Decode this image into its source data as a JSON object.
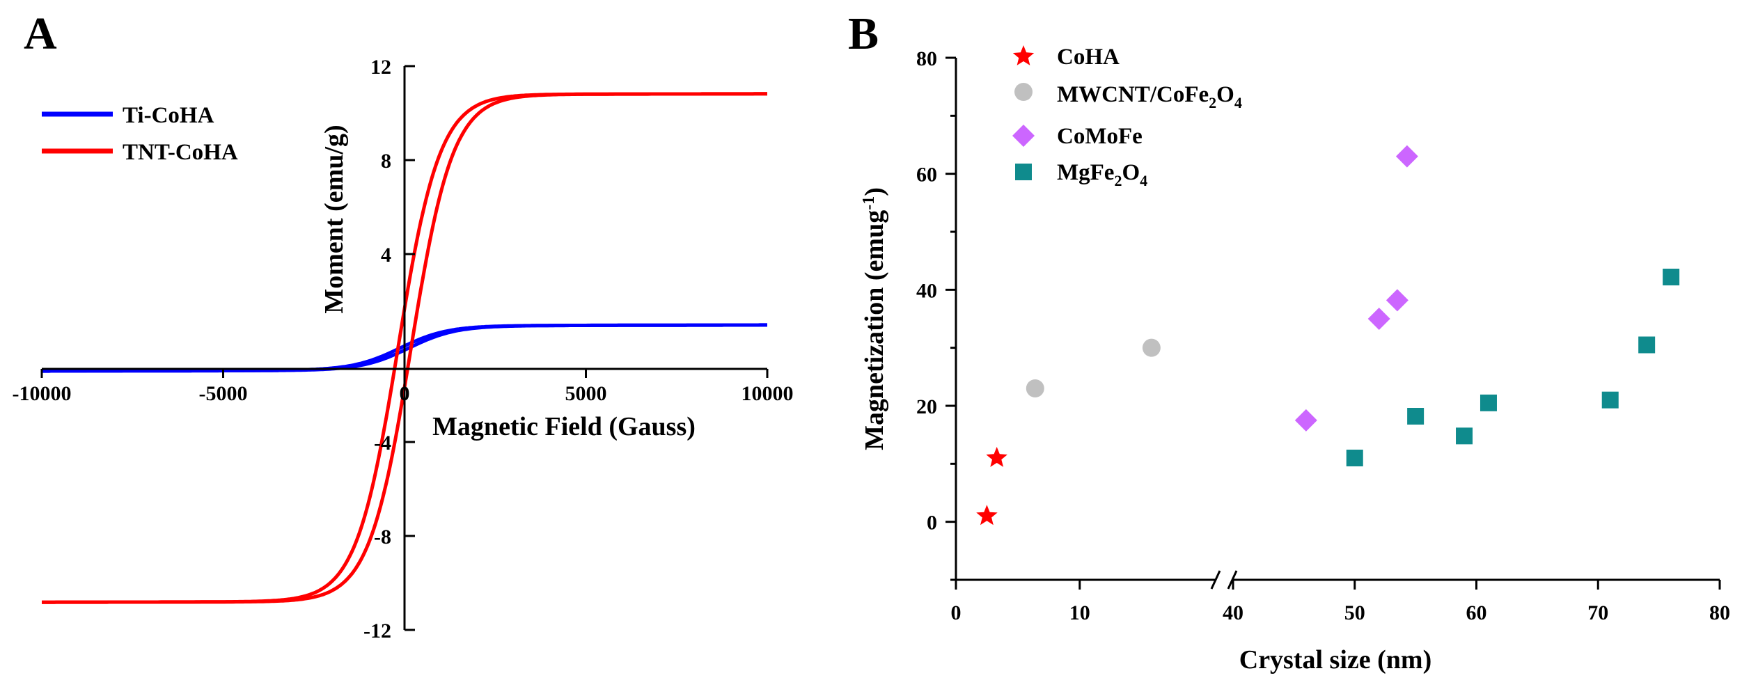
{
  "chart_data": [
    {
      "panel": "A",
      "type": "line",
      "title": "",
      "xlabel": "Magnetic Field (Gauss)",
      "ylabel": "Moment (emu/g)",
      "xlim": [
        -10000,
        10000
      ],
      "ylim": [
        -12,
        12
      ],
      "xticks": [
        -10000,
        -5000,
        0,
        5000,
        10000
      ],
      "xtick_labels": [
        "-10000",
        "-5000",
        "0",
        "5000",
        "10000"
      ],
      "yticks": [
        -12,
        -8,
        -4,
        4,
        8,
        12
      ],
      "ytick_labels": [
        "-12",
        "-8",
        "-4",
        "4",
        "8",
        "12"
      ],
      "legend": [
        "Ti-CoHA",
        "TNT-CoHA"
      ],
      "series": [
        {
          "name": "Ti-CoHA",
          "color": "#0000ff",
          "ms": 0.95,
          "h0": 1300,
          "hc": 120,
          "tilt": 3e-06
        },
        {
          "name": "TNT-CoHA",
          "color": "#ff0000",
          "ms": 10.8,
          "h0": 1150,
          "hc": 180,
          "tilt": 2e-06
        }
      ]
    },
    {
      "panel": "B",
      "type": "scatter",
      "title": "",
      "xlabel": "Crystal size (nm)",
      "ylabel": "Magnetization (emug",
      "ylabel_sup": "-1",
      "ylabel_close": ")",
      "axis_break": true,
      "x_segments": [
        {
          "xmin": 0,
          "xmax": 18
        },
        {
          "xmin": 40,
          "xmax": 80
        }
      ],
      "ylim": [
        -10,
        80
      ],
      "xtick_labels": [
        "0",
        "10",
        "40",
        "50",
        "60",
        "70",
        "80"
      ],
      "xtick_values": [
        0,
        10,
        40,
        50,
        60,
        70,
        80
      ],
      "yticks": [
        0,
        20,
        40,
        60,
        80
      ],
      "ytick_labels": [
        "0",
        "20",
        "40",
        "60",
        "80"
      ],
      "series": [
        {
          "name": "CoHA",
          "label_main": "CoHA",
          "marker": "star",
          "color": "#ff0000",
          "points": [
            [
              2.5,
              1
            ],
            [
              3.3,
              11
            ]
          ]
        },
        {
          "name": "MWCNT/CoFe2O4",
          "label_main": "MWCNT/CoFe",
          "label_sub1": "2",
          "label_mid": "O",
          "label_sub2": "4",
          "marker": "circle",
          "color": "#c0c0c0",
          "points": [
            [
              6.4,
              23
            ],
            [
              15.8,
              30
            ]
          ]
        },
        {
          "name": "CoMoFe",
          "label_main": "CoMoFe",
          "marker": "diamond",
          "color": "#cc66ff",
          "points": [
            [
              46,
              17.5
            ],
            [
              52,
              35
            ],
            [
              53.5,
              38.2
            ],
            [
              54.3,
              63
            ]
          ]
        },
        {
          "name": "MgFe2O4",
          "label_main": "MgFe",
          "label_sub1": "2",
          "label_mid": "O",
          "label_sub2": "4",
          "marker": "square",
          "color": "#0f8b8d",
          "points": [
            [
              50,
              11
            ],
            [
              55,
              18.2
            ],
            [
              59,
              14.8
            ],
            [
              61,
              20.5
            ],
            [
              71,
              21
            ],
            [
              74,
              30.5
            ],
            [
              76,
              42.2
            ]
          ]
        }
      ]
    }
  ]
}
